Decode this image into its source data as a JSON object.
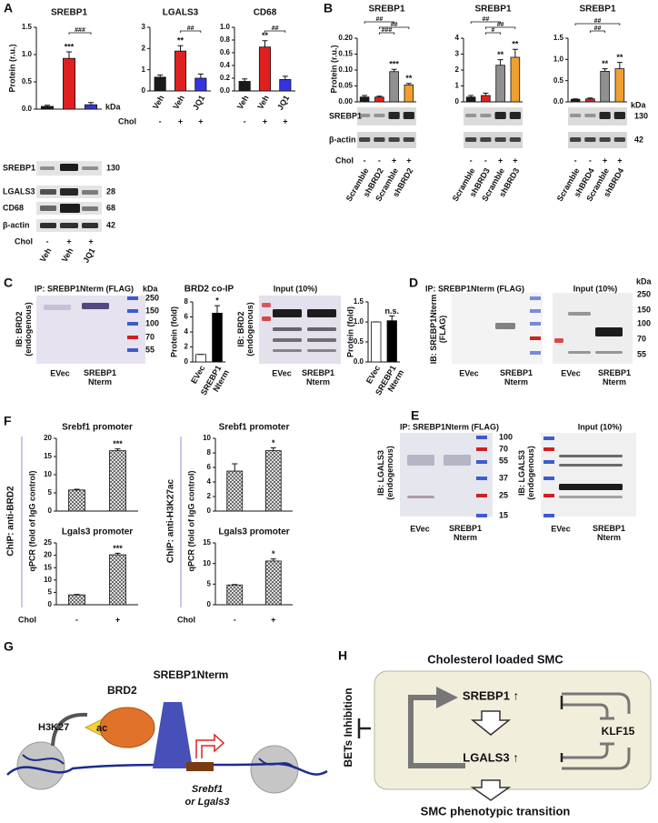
{
  "panel_labels": [
    "A",
    "B",
    "C",
    "D",
    "F",
    "E",
    "G",
    "H"
  ],
  "chart_data": [
    {
      "type": "bar",
      "title": "SREBP1",
      "y_label": "Protein (r.u.)",
      "categories": [
        "Veh",
        "Veh",
        "JQ1"
      ],
      "chol_label": "Chol",
      "chol": [
        "-",
        "+",
        "+"
      ],
      "values": [
        0.05,
        0.93,
        0.08
      ],
      "errors": [
        0.02,
        0.12,
        0.04
      ],
      "colors": [
        "#1a1a1a",
        "#e02020",
        "#3434e0"
      ],
      "ylim": [
        0,
        1.5
      ],
      "yticks": [
        {
          "value": 0,
          "label": "0.0"
        },
        0.5,
        {
          "value": 1,
          "label": "1.0"
        },
        1.5
      ],
      "annotations": [
        "***",
        "###"
      ]
    },
    {
      "type": "bar",
      "title": "LGALS3",
      "categories": [
        "Veh",
        "Veh",
        "JQ1"
      ],
      "chol_label": "Chol",
      "chol": [
        "-",
        "+",
        "+"
      ],
      "values": [
        0.65,
        1.88,
        0.6
      ],
      "errors": [
        0.1,
        0.25,
        0.2
      ],
      "colors": [
        "#1a1a1a",
        "#e02020",
        "#3434e0"
      ],
      "ylim": [
        0,
        3
      ],
      "yticks": [
        0,
        1,
        2,
        3
      ],
      "annotations": [
        "**",
        "##"
      ]
    },
    {
      "type": "bar",
      "title": "CD68",
      "categories": [
        "Veh",
        "Veh",
        "JQ1"
      ],
      "chol": [
        "-",
        "+",
        "+"
      ],
      "values": [
        0.15,
        0.69,
        0.18
      ],
      "errors": [
        0.04,
        0.1,
        0.05
      ],
      "colors": [
        "#1a1a1a",
        "#e02020",
        "#3434e0"
      ],
      "ylim": [
        0,
        1
      ],
      "yticks": [
        {
          "value": 0,
          "label": "0.0"
        },
        0.2,
        0.4,
        0.6,
        0.8,
        {
          "value": 1,
          "label": "1.0"
        }
      ],
      "annotations": [
        "**",
        "##"
      ]
    },
    {
      "type": "bar",
      "title": "SREBP1",
      "y_label": "Protein (r.u.)",
      "categories": [
        "Scramble",
        "shBRD2",
        "Scramble",
        "shBRD2"
      ],
      "chol_label": "Chol",
      "chol": [
        "-",
        "-",
        "+",
        "+"
      ],
      "values": [
        0.015,
        0.015,
        0.095,
        0.053
      ],
      "errors": [
        0.005,
        0.003,
        0.007,
        0.005
      ],
      "colors": [
        "#1a1a1a",
        "#e02020",
        "#909090",
        "#f0a030"
      ],
      "ylim": [
        0,
        0.2
      ],
      "yticks": [
        {
          "value": 0,
          "label": "0.00"
        },
        0.05,
        {
          "value": 0.1,
          "label": "0.10"
        },
        0.15,
        {
          "value": 0.2,
          "label": "0.20"
        }
      ],
      "annotations": [
        "***",
        "**",
        "###",
        "##",
        "##"
      ]
    },
    {
      "type": "bar",
      "title": "SREBP1",
      "categories": [
        "Scramble",
        "shBRD3",
        "Scramble",
        "shBRD3"
      ],
      "chol": [
        "-",
        "-",
        "+",
        "+"
      ],
      "values": [
        0.3,
        0.4,
        2.3,
        2.8
      ],
      "errors": [
        0.1,
        0.15,
        0.35,
        0.5
      ],
      "colors": [
        "#1a1a1a",
        "#e02020",
        "#909090",
        "#f0a030"
      ],
      "ylim": [
        0,
        4
      ],
      "yticks": [
        0,
        1,
        2,
        3,
        4
      ],
      "annotations": [
        "**",
        "**",
        "#",
        "##",
        "##"
      ]
    },
    {
      "type": "bar",
      "title": "SREBP1",
      "categories": [
        "Scramble",
        "shBRD4",
        "Scramble",
        "shBRD4"
      ],
      "chol": [
        "-",
        "-",
        "+",
        "+"
      ],
      "values": [
        0.06,
        0.07,
        0.72,
        0.78
      ],
      "errors": [
        0.01,
        0.02,
        0.06,
        0.15
      ],
      "colors": [
        "#1a1a1a",
        "#e02020",
        "#909090",
        "#f0a030"
      ],
      "ylim": [
        0,
        1.5
      ],
      "yticks": [
        {
          "value": 0,
          "label": "0.0"
        },
        0.5,
        {
          "value": 1,
          "label": "1.0"
        },
        1.5
      ],
      "annotations": [
        "**",
        "**",
        "##",
        "##"
      ]
    },
    {
      "type": "bar",
      "title": "BRD2 co-IP",
      "y_label": "Protein (fold)",
      "categories": [
        "EVec",
        "SREBP1 Nterm"
      ],
      "values": [
        1,
        6.5
      ],
      "errors": [
        0,
        1
      ],
      "colors": [
        "#ffffff",
        "#000000"
      ],
      "ylim": [
        0,
        8
      ],
      "yticks": [
        0,
        2,
        4,
        6,
        8
      ],
      "annotations": [
        "*"
      ]
    },
    {
      "type": "bar",
      "y_label": "Protein (fold)",
      "categories": [
        "EVec",
        "SREBP1 Nterm"
      ],
      "values": [
        1,
        1.03
      ],
      "errors": [
        0,
        0.12
      ],
      "colors": [
        "#ffffff",
        "#000000"
      ],
      "ylim": [
        0,
        1.5
      ],
      "yticks": [
        {
          "value": 0,
          "label": "0.0"
        },
        0.5,
        {
          "value": 1,
          "label": "1.0"
        },
        1.5
      ],
      "annotations": [
        "n.s."
      ]
    },
    {
      "type": "bar",
      "title": "Srebf1 promoter",
      "y_label": "qPCR (fold of IgG control)",
      "assay": "ChIP: anti-BRD2",
      "values": [
        5.8,
        16.6
      ],
      "errors": [
        0.2,
        0.5
      ],
      "colors": [
        "#555555",
        "#555555"
      ],
      "hatch": true,
      "ylim": [
        0,
        20
      ],
      "yticks": [
        0,
        5,
        10,
        15,
        20
      ],
      "annotations": [
        "***"
      ]
    },
    {
      "type": "bar",
      "title": "Srebf1 promoter",
      "y_label": "qPCR (fold of IgG control)",
      "assay": "ChIP: anti-H3K27ac",
      "values": [
        5.5,
        8.3
      ],
      "errors": [
        1,
        0.4
      ],
      "colors": [
        "#555555",
        "#555555"
      ],
      "hatch": true,
      "ylim": [
        0,
        10
      ],
      "yticks": [
        0,
        2,
        4,
        6,
        8,
        10
      ],
      "annotations": [
        "*"
      ]
    },
    {
      "type": "bar",
      "title": "Lgals3 promoter",
      "chol_label": "Chol",
      "chol": [
        "-",
        "+"
      ],
      "values": [
        4,
        20.2
      ],
      "errors": [
        0.2,
        0.6
      ],
      "colors": [
        "#555555",
        "#555555"
      ],
      "hatch": true,
      "ylim": [
        0,
        25
      ],
      "yticks": [
        0,
        5,
        10,
        15,
        20,
        25
      ],
      "annotations": [
        "***"
      ]
    },
    {
      "type": "bar",
      "title": "Lgals3 promoter",
      "chol_label": "Chol",
      "chol": [
        "-",
        "+"
      ],
      "values": [
        4.8,
        10.6
      ],
      "errors": [
        0.1,
        0.5
      ],
      "colors": [
        "#555555",
        "#555555"
      ],
      "hatch": true,
      "ylim": [
        0,
        15
      ],
      "yticks": [
        0,
        5,
        10,
        15
      ],
      "annotations": [
        "*"
      ]
    }
  ],
  "blot_a": {
    "rows": [
      "SREBP1",
      "LGALS3",
      "CD68",
      "β-actin"
    ],
    "kda": "kDa",
    "sizes": [
      "130",
      "28",
      "68",
      "42"
    ]
  },
  "blot_b": {
    "rows": [
      "SREBP1",
      "β-actin"
    ],
    "kda": "kDa",
    "sizes": [
      "130",
      "42"
    ]
  },
  "panel_c": {
    "ip": "IP: SREBP1Nterm (FLAG)",
    "ib": "IB: BRD2 (endogenous)",
    "kda": "kDa",
    "markers": [
      "250",
      "150",
      "100",
      "70",
      "55"
    ],
    "ip_lanes": [
      "EVec",
      "SREBP1 Nterm"
    ],
    "input": "Input (10%)",
    "input_ib": "IB: BRD2 (endogenous)",
    "input_lanes": [
      "EVec",
      "SREBP1 Nterm"
    ]
  },
  "panel_d": {
    "ip": "IP: SREBP1Nterm (FLAG)",
    "input": "Input (10%)",
    "ib": "IB: SREBP1Nterm (FLAG)",
    "kda": "kDa",
    "markers": [
      "250",
      "150",
      "100",
      "70",
      "55"
    ],
    "ip_lanes": [
      "EVec",
      "SREBP1 Nterm"
    ],
    "input_lanes": [
      "EVec",
      "SREBP1 Nterm"
    ]
  },
  "panel_e": {
    "ip": "IP: SREBP1Nterm (FLAG)",
    "input": "Input (10%)",
    "ib": "IB: LGALS3 (endogenous)",
    "input_ib": "IB: LGALS3 (endogenous)",
    "markers": [
      "100",
      "70",
      "55",
      "37",
      "25",
      "15"
    ],
    "ip_lanes": [
      "EVec",
      "SREBP1 Nterm"
    ],
    "input_lanes": [
      "EVec",
      "SREBP1 Nterm"
    ]
  },
  "diagram_g": {
    "brd2": "BRD2",
    "srebp1nterm": "SREBP1Nterm",
    "h3k27": "H3K27",
    "ac": "ac",
    "gene": "Srebf1",
    "alt_gene": "or Lgals3"
  },
  "diagram_h": {
    "title": "Cholesterol loaded SMC",
    "inhibitor": "BETs Inhibition",
    "srebp1": "SREBP1 ↑",
    "lgals3": "LGALS3 ↑",
    "klf15": "KLF15",
    "outcome": "SMC phenotypic transition"
  }
}
